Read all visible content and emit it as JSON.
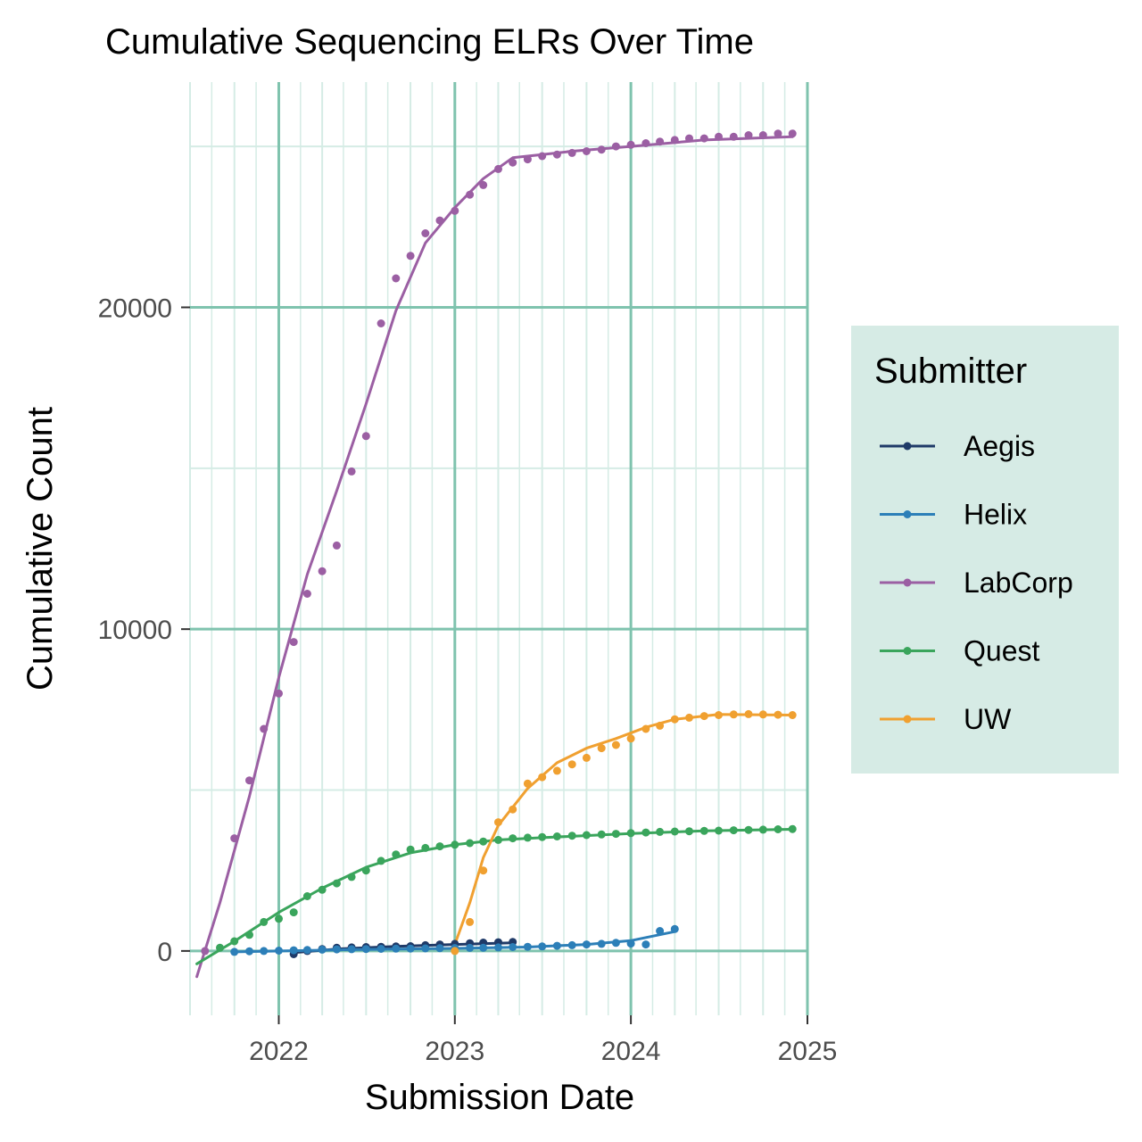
{
  "chart_data": {
    "type": "line",
    "title": "Cumulative Sequencing ELRs Over Time",
    "xlabel": "Submission Date",
    "ylabel": "Cumulative Count",
    "x_ticks": [
      "2022",
      "2023",
      "2024",
      "2025"
    ],
    "y_ticks": [
      "0",
      "10000",
      "20000"
    ],
    "xlim": [
      "2021-07-01",
      "2025-01-01"
    ],
    "ylim": [
      -2000,
      27000
    ],
    "grid": true,
    "legend": {
      "title": "Submitter",
      "placement": "right"
    },
    "colors": {
      "grid_major": "#7fc3ae",
      "grid_minor": "#d5ece5",
      "legend_bg": "#d6ebe5"
    },
    "series": [
      {
        "name": "Aegis",
        "color": "#1f3a68",
        "points": [
          [
            "2022-02-01",
            -100
          ],
          [
            "2022-03-01",
            0
          ],
          [
            "2022-04-01",
            60
          ],
          [
            "2022-05-01",
            100
          ],
          [
            "2022-06-01",
            110
          ],
          [
            "2022-07-01",
            120
          ],
          [
            "2022-08-01",
            130
          ],
          [
            "2022-09-01",
            140
          ],
          [
            "2022-10-01",
            150
          ],
          [
            "2022-11-01",
            180
          ],
          [
            "2022-12-01",
            200
          ],
          [
            "2023-01-01",
            220
          ],
          [
            "2023-02-01",
            240
          ],
          [
            "2023-03-01",
            260
          ],
          [
            "2023-04-01",
            270
          ],
          [
            "2023-05-01",
            280
          ]
        ],
        "fit": [
          [
            "2022-02-01",
            -50
          ],
          [
            "2022-05-01",
            60
          ],
          [
            "2022-09-01",
            140
          ],
          [
            "2023-01-01",
            200
          ],
          [
            "2023-05-01",
            250
          ]
        ]
      },
      {
        "name": "Helix",
        "color": "#2c7fb8",
        "points": [
          [
            "2021-10-01",
            -30
          ],
          [
            "2021-11-01",
            -10
          ],
          [
            "2021-12-01",
            0
          ],
          [
            "2022-01-01",
            10
          ],
          [
            "2022-02-01",
            20
          ],
          [
            "2022-03-01",
            30
          ],
          [
            "2022-04-01",
            40
          ],
          [
            "2022-05-01",
            50
          ],
          [
            "2022-06-01",
            55
          ],
          [
            "2022-07-01",
            60
          ],
          [
            "2022-08-01",
            65
          ],
          [
            "2022-09-01",
            70
          ],
          [
            "2022-10-01",
            75
          ],
          [
            "2022-11-01",
            80
          ],
          [
            "2022-12-01",
            85
          ],
          [
            "2023-01-01",
            90
          ],
          [
            "2023-02-01",
            95
          ],
          [
            "2023-03-01",
            100
          ],
          [
            "2023-04-01",
            110
          ],
          [
            "2023-05-01",
            120
          ],
          [
            "2023-06-01",
            130
          ],
          [
            "2023-07-01",
            140
          ],
          [
            "2023-08-01",
            160
          ],
          [
            "2023-09-01",
            180
          ],
          [
            "2023-10-01",
            200
          ],
          [
            "2023-11-01",
            220
          ],
          [
            "2023-12-01",
            250
          ],
          [
            "2024-01-01",
            230
          ],
          [
            "2024-02-01",
            200
          ],
          [
            "2024-03-01",
            620
          ],
          [
            "2024-04-01",
            680
          ]
        ],
        "fit": [
          [
            "2021-10-01",
            -30
          ],
          [
            "2022-06-01",
            40
          ],
          [
            "2023-01-01",
            80
          ],
          [
            "2023-06-01",
            120
          ],
          [
            "2023-10-01",
            200
          ],
          [
            "2024-01-01",
            320
          ],
          [
            "2024-04-01",
            600
          ]
        ]
      },
      {
        "name": "LabCorp",
        "color": "#9b5fa3",
        "points": [
          [
            "2021-08-01",
            0
          ],
          [
            "2021-10-01",
            3500
          ],
          [
            "2021-11-01",
            5300
          ],
          [
            "2021-12-01",
            6900
          ],
          [
            "2022-01-01",
            8000
          ],
          [
            "2022-02-01",
            9600
          ],
          [
            "2022-03-01",
            11100
          ],
          [
            "2022-04-01",
            11800
          ],
          [
            "2022-05-01",
            12600
          ],
          [
            "2022-06-01",
            14900
          ],
          [
            "2022-07-01",
            16000
          ],
          [
            "2022-08-01",
            19500
          ],
          [
            "2022-09-01",
            20900
          ],
          [
            "2022-10-01",
            21600
          ],
          [
            "2022-11-01",
            22300
          ],
          [
            "2022-12-01",
            22700
          ],
          [
            "2023-01-01",
            23000
          ],
          [
            "2023-02-01",
            23500
          ],
          [
            "2023-03-01",
            23800
          ],
          [
            "2023-04-01",
            24300
          ],
          [
            "2023-05-01",
            24500
          ],
          [
            "2023-06-01",
            24600
          ],
          [
            "2023-07-01",
            24700
          ],
          [
            "2023-08-01",
            24750
          ],
          [
            "2023-09-01",
            24800
          ],
          [
            "2023-10-01",
            24850
          ],
          [
            "2023-11-01",
            24900
          ],
          [
            "2023-12-01",
            25000
          ],
          [
            "2024-01-01",
            25050
          ],
          [
            "2024-02-01",
            25100
          ],
          [
            "2024-03-01",
            25150
          ],
          [
            "2024-04-01",
            25200
          ],
          [
            "2024-05-01",
            25250
          ],
          [
            "2024-06-01",
            25250
          ],
          [
            "2024-07-01",
            25300
          ],
          [
            "2024-08-01",
            25300
          ],
          [
            "2024-09-01",
            25350
          ],
          [
            "2024-10-01",
            25350
          ],
          [
            "2024-11-01",
            25400
          ],
          [
            "2024-12-01",
            25400
          ]
        ],
        "fit": [
          [
            "2021-07-15",
            -800
          ],
          [
            "2021-09-01",
            1500
          ],
          [
            "2021-11-01",
            4800
          ],
          [
            "2022-01-01",
            8500
          ],
          [
            "2022-03-01",
            11700
          ],
          [
            "2022-05-01",
            14300
          ],
          [
            "2022-07-01",
            17000
          ],
          [
            "2022-09-01",
            19900
          ],
          [
            "2022-11-01",
            22000
          ],
          [
            "2023-01-01",
            23100
          ],
          [
            "2023-03-01",
            24000
          ],
          [
            "2023-05-01",
            24650
          ],
          [
            "2023-07-01",
            24750
          ],
          [
            "2023-09-01",
            24850
          ],
          [
            "2024-01-01",
            25000
          ],
          [
            "2024-06-01",
            25200
          ],
          [
            "2024-12-01",
            25300
          ]
        ]
      },
      {
        "name": "Quest",
        "color": "#3aa55c",
        "points": [
          [
            "2021-09-01",
            100
          ],
          [
            "2021-10-01",
            300
          ],
          [
            "2021-11-01",
            500
          ],
          [
            "2021-12-01",
            900
          ],
          [
            "2022-01-01",
            1000
          ],
          [
            "2022-02-01",
            1200
          ],
          [
            "2022-03-01",
            1700
          ],
          [
            "2022-04-01",
            1900
          ],
          [
            "2022-05-01",
            2100
          ],
          [
            "2022-06-01",
            2300
          ],
          [
            "2022-07-01",
            2500
          ],
          [
            "2022-08-01",
            2800
          ],
          [
            "2022-09-01",
            3000
          ],
          [
            "2022-10-01",
            3150
          ],
          [
            "2022-11-01",
            3200
          ],
          [
            "2022-12-01",
            3250
          ],
          [
            "2023-01-01",
            3300
          ],
          [
            "2023-02-01",
            3350
          ],
          [
            "2023-03-01",
            3400
          ],
          [
            "2023-04-01",
            3450
          ],
          [
            "2023-05-01",
            3500
          ],
          [
            "2023-06-01",
            3520
          ],
          [
            "2023-07-01",
            3540
          ],
          [
            "2023-08-01",
            3560
          ],
          [
            "2023-09-01",
            3580
          ],
          [
            "2023-10-01",
            3600
          ],
          [
            "2023-11-01",
            3620
          ],
          [
            "2023-12-01",
            3640
          ],
          [
            "2024-01-01",
            3660
          ],
          [
            "2024-02-01",
            3680
          ],
          [
            "2024-03-01",
            3700
          ],
          [
            "2024-04-01",
            3710
          ],
          [
            "2024-05-01",
            3720
          ],
          [
            "2024-06-01",
            3730
          ],
          [
            "2024-07-01",
            3740
          ],
          [
            "2024-08-01",
            3750
          ],
          [
            "2024-09-01",
            3760
          ],
          [
            "2024-10-01",
            3770
          ],
          [
            "2024-11-01",
            3780
          ],
          [
            "2024-12-01",
            3790
          ]
        ],
        "fit": [
          [
            "2021-07-15",
            -400
          ],
          [
            "2021-10-01",
            300
          ],
          [
            "2022-01-01",
            1200
          ],
          [
            "2022-04-01",
            1950
          ],
          [
            "2022-07-01",
            2600
          ],
          [
            "2022-10-01",
            3050
          ],
          [
            "2023-01-01",
            3300
          ],
          [
            "2023-04-01",
            3450
          ],
          [
            "2023-07-01",
            3520
          ],
          [
            "2024-01-01",
            3650
          ],
          [
            "2024-06-01",
            3730
          ],
          [
            "2024-12-01",
            3780
          ]
        ]
      },
      {
        "name": "UW",
        "color": "#f0a030",
        "points": [
          [
            "2023-01-01",
            0
          ],
          [
            "2023-02-01",
            900
          ],
          [
            "2023-03-01",
            2500
          ],
          [
            "2023-04-01",
            4000
          ],
          [
            "2023-05-01",
            4400
          ],
          [
            "2023-06-01",
            5200
          ],
          [
            "2023-07-01",
            5400
          ],
          [
            "2023-08-01",
            5600
          ],
          [
            "2023-09-01",
            5800
          ],
          [
            "2023-10-01",
            6000
          ],
          [
            "2023-11-01",
            6300
          ],
          [
            "2023-12-01",
            6400
          ],
          [
            "2024-01-01",
            6600
          ],
          [
            "2024-02-01",
            6900
          ],
          [
            "2024-03-01",
            7000
          ],
          [
            "2024-04-01",
            7200
          ],
          [
            "2024-05-01",
            7250
          ],
          [
            "2024-06-01",
            7300
          ],
          [
            "2024-07-01",
            7330
          ],
          [
            "2024-08-01",
            7350
          ],
          [
            "2024-09-01",
            7360
          ],
          [
            "2024-10-01",
            7350
          ],
          [
            "2024-11-01",
            7340
          ],
          [
            "2024-12-01",
            7330
          ]
        ],
        "fit": [
          [
            "2023-01-01",
            200
          ],
          [
            "2023-02-01",
            1500
          ],
          [
            "2023-03-01",
            2900
          ],
          [
            "2023-04-01",
            3900
          ],
          [
            "2023-06-01",
            5050
          ],
          [
            "2023-08-01",
            5850
          ],
          [
            "2023-10-01",
            6300
          ],
          [
            "2023-12-01",
            6600
          ],
          [
            "2024-02-01",
            6950
          ],
          [
            "2024-04-01",
            7200
          ],
          [
            "2024-07-01",
            7350
          ],
          [
            "2024-12-01",
            7330
          ]
        ]
      }
    ]
  }
}
